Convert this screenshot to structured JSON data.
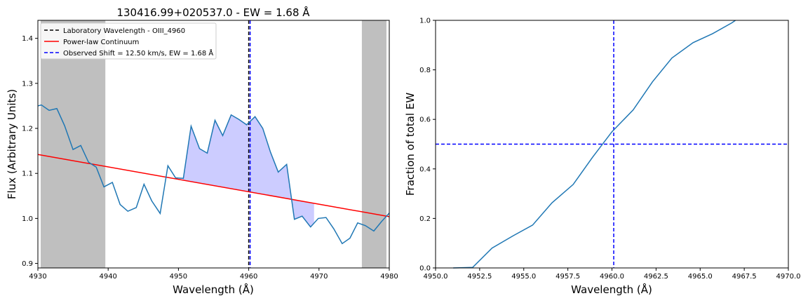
{
  "chart_data": [
    {
      "type": "line",
      "title": "130416.99+020537.0 - EW = 1.68 Å",
      "xlabel": "Wavelength (Å)",
      "ylabel": "Flux (Arbitrary Units)",
      "xlim": [
        4930,
        4980
      ],
      "ylim": [
        0.89,
        1.44
      ],
      "xticks": [
        "4930",
        "4940",
        "4950",
        "4960",
        "4970",
        "4980"
      ],
      "yticks": [
        "0.9",
        "1.0",
        "1.1",
        "1.2",
        "1.3",
        "1.4"
      ],
      "xtick_values": [
        4930,
        4940,
        4950,
        4960,
        4970,
        4980
      ],
      "ytick_values": [
        0.9,
        1.0,
        1.1,
        1.2,
        1.3,
        1.4
      ],
      "grid": false,
      "legend_position": "upper-left",
      "shaded_regions": [
        [
          4930.4,
          4939.6
        ],
        [
          4976.1,
          4979.6
        ]
      ],
      "legend": [
        {
          "label": "Laboratory Wavelength - OIII_4960",
          "color": "#000000",
          "style": "dashed"
        },
        {
          "label": "Power-law Continuum",
          "color": "#ff0000",
          "style": "solid"
        },
        {
          "label": "Observed Shift = 12.50 km/s, EW = 1.68 Å",
          "color": "#0000ff",
          "style": "dashed"
        }
      ],
      "series": [
        {
          "color": "#1f77b4",
          "x": [
            4930.0,
            4930.5,
            4931.6,
            4932.7,
            4933.8,
            4935.0,
            4936.1,
            4937.2,
            4938.3,
            4939.4,
            4940.6,
            4941.7,
            4942.8,
            4944.0,
            4945.1,
            4946.2,
            4947.4,
            4948.5,
            4949.6,
            4950.7,
            4951.8,
            4953.0,
            4954.1,
            4955.2,
            4956.3,
            4957.5,
            4958.6,
            4959.7,
            4960.9,
            4962.0,
            4963.1,
            4964.2,
            4965.4,
            4966.5,
            4967.6,
            4968.8,
            4969.9,
            4971.0,
            4972.1,
            4973.3,
            4974.4,
            4975.5,
            4976.6,
            4977.8,
            4978.9,
            4980.0
          ],
          "y": [
            1.25,
            1.252,
            1.24,
            1.244,
            1.206,
            1.153,
            1.162,
            1.125,
            1.114,
            1.07,
            1.08,
            1.031,
            1.016,
            1.024,
            1.076,
            1.039,
            1.011,
            1.117,
            1.09,
            1.089,
            1.205,
            1.155,
            1.145,
            1.218,
            1.184,
            1.23,
            1.22,
            1.208,
            1.226,
            1.2,
            1.147,
            1.103,
            1.12,
            0.998,
            1.005,
            0.981,
            1.0,
            1.002,
            0.977,
            0.944,
            0.956,
            0.99,
            0.984,
            0.972,
            0.993,
            1.012
          ]
        },
        {
          "name": "Power-law Continuum",
          "color": "#ff0000",
          "x": [
            4930,
            4980
          ],
          "y": [
            1.142,
            1.004
          ]
        }
      ],
      "fill_between": {
        "color": "#ccccff",
        "xrange": [
          4950.6,
          4969.3
        ]
      },
      "vlines": [
        {
          "x": 4960.0,
          "color": "#000000",
          "style": "dashed"
        },
        {
          "x": 4960.2,
          "color": "#0000ff",
          "style": "dashed"
        }
      ]
    },
    {
      "type": "line",
      "xlabel": "Wavelength (Å)",
      "ylabel": "Fraction of total EW",
      "xlim": [
        4950.0,
        4970.0
      ],
      "ylim": [
        0.0,
        1.0
      ],
      "xticks": [
        "4950.0",
        "4952.5",
        "4955.0",
        "4957.5",
        "4960.0",
        "4962.5",
        "4965.0",
        "4967.5",
        "4970.0"
      ],
      "yticks": [
        "0.0",
        "0.2",
        "0.4",
        "0.6",
        "0.8",
        "1.0"
      ],
      "xtick_values": [
        4950.0,
        4952.5,
        4955.0,
        4957.5,
        4960.0,
        4962.5,
        4965.0,
        4967.5,
        4970.0
      ],
      "ytick_values": [
        0.0,
        0.2,
        0.4,
        0.6,
        0.8,
        1.0
      ],
      "grid": false,
      "series": [
        {
          "color": "#1f77b4",
          "x": [
            4951.0,
            4952.1,
            4953.2,
            4954.4,
            4955.5,
            4956.6,
            4957.8,
            4958.9,
            4960.0,
            4961.2,
            4962.3,
            4963.4,
            4964.6,
            4965.7,
            4966.8,
            4967.0
          ],
          "y": [
            0.0,
            0.002,
            0.08,
            0.13,
            0.173,
            0.263,
            0.337,
            0.447,
            0.55,
            0.638,
            0.752,
            0.848,
            0.91,
            0.946,
            0.99,
            1.0
          ]
        }
      ],
      "vlines": [
        {
          "x": 4960.1,
          "color": "#0000ff",
          "style": "dashed"
        }
      ],
      "hlines": [
        {
          "y": 0.5,
          "color": "#0000ff",
          "style": "dashed"
        }
      ]
    }
  ]
}
